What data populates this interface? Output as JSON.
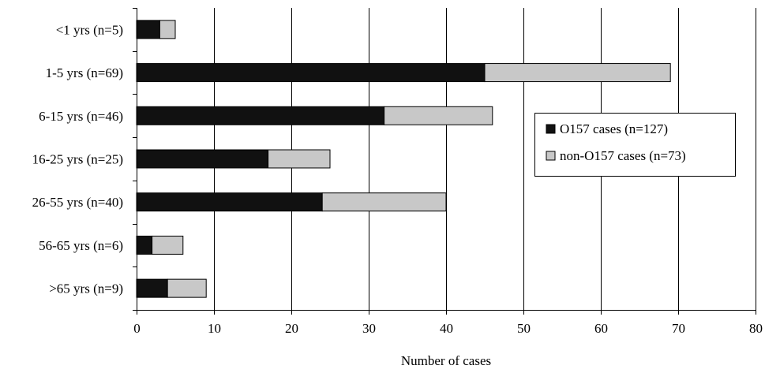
{
  "chart_data": {
    "type": "bar",
    "orientation": "horizontal",
    "stacked": true,
    "categories": [
      "<1 yrs (n=5)",
      "1-5 yrs (n=69)",
      "6-15 yrs (n=46)",
      "16-25 yrs (n=25)",
      "26-55 yrs (n=40)",
      "56-65 yrs (n=6)",
      ">65 yrs (n=9)"
    ],
    "series": [
      {
        "name": "O157 cases (n=127)",
        "color": "#111111",
        "values": [
          3,
          45,
          32,
          17,
          24,
          2,
          4
        ]
      },
      {
        "name": "non-O157 cases (n=73)",
        "color": "#c8c8c8",
        "values": [
          2,
          24,
          14,
          8,
          16,
          4,
          5
        ]
      }
    ],
    "xlabel": "Number of cases",
    "ylabel": "",
    "xlim": [
      0,
      80
    ],
    "xticks": [
      "0",
      "10",
      "20",
      "30",
      "40",
      "50",
      "60",
      "70",
      "80"
    ],
    "grid": "vertical",
    "legend_position": "right"
  }
}
